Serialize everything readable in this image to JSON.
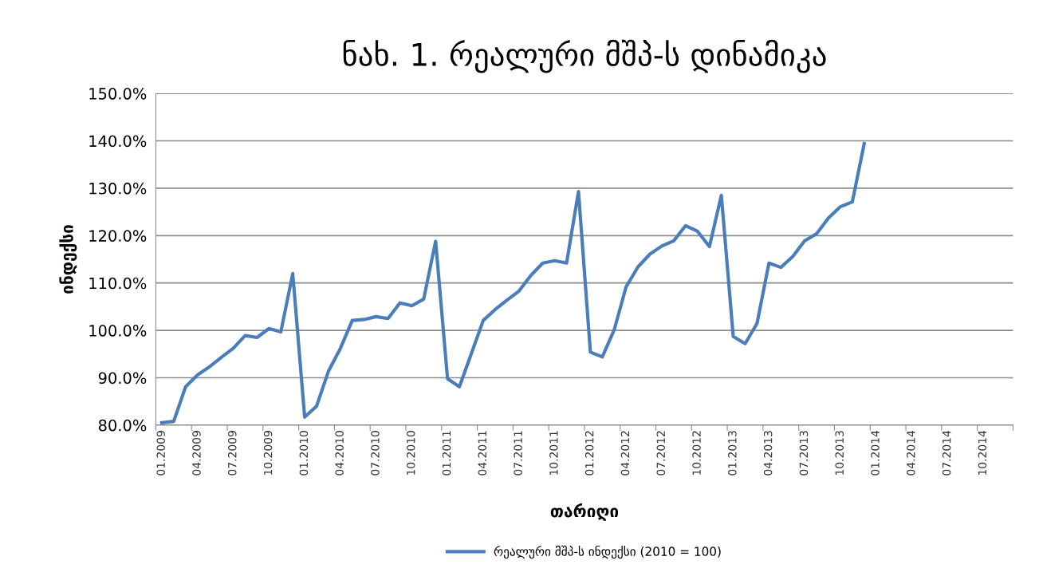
{
  "chart_data": {
    "type": "line",
    "title": "ნახ. 1. რეალური მშპ-ს დინამიკა",
    "xlabel": "თარიღი",
    "ylabel": "ინდექსი",
    "categories": [
      "01.2009",
      null,
      null,
      "04.2009",
      null,
      null,
      "07.2009",
      null,
      null,
      "10.2009",
      null,
      null,
      "01.2010",
      null,
      null,
      "04.2010",
      null,
      null,
      "07.2010",
      null,
      null,
      "10.2010",
      null,
      null,
      "01.2011",
      null,
      null,
      "04.2011",
      null,
      null,
      "07.2011",
      null,
      null,
      "10.2011",
      null,
      null,
      "01.2012",
      null,
      null,
      "04.2012",
      null,
      null,
      "07.2012",
      null,
      null,
      "10.2012",
      null,
      null,
      "01.2013",
      null,
      null,
      "04.2013",
      null,
      null,
      "07.2013",
      null,
      null,
      "10.2013",
      null,
      null,
      "01.2014",
      null,
      null,
      "04.2014",
      null,
      null,
      "07.2014",
      null,
      null,
      "10.2014",
      null,
      null
    ],
    "series": [
      {
        "name": "რეალური მშპ-ს ინდექსი (2010 = 100)",
        "color": "#4a7ebb",
        "values": [
          80.5,
          80.8,
          88.1,
          90.6,
          92.3,
          94.3,
          96.2,
          98.9,
          98.5,
          100.4,
          99.7,
          112.0,
          81.7,
          84.0,
          91.4,
          96.2,
          102.1,
          102.3,
          102.9,
          102.5,
          105.8,
          105.2,
          106.6,
          118.8,
          89.8,
          88.1,
          95.1,
          102.1,
          104.4,
          106.4,
          108.3,
          111.6,
          114.2,
          114.7,
          114.2,
          129.3,
          95.4,
          94.4,
          100.1,
          109.2,
          113.4,
          116.1,
          117.8,
          118.9,
          122.1,
          120.9,
          117.7,
          128.5,
          98.7,
          97.2,
          101.5,
          114.2,
          113.3,
          115.6,
          118.9,
          120.4,
          123.7,
          126.1,
          127.1,
          139.4,
          null,
          null,
          null,
          null,
          null,
          null,
          null,
          null,
          null,
          null,
          null,
          null
        ]
      }
    ],
    "ylim": [
      80,
      150
    ],
    "yticks": [
      {
        "value": 80,
        "label": "80.0%"
      },
      {
        "value": 90,
        "label": "90.0%"
      },
      {
        "value": 100,
        "label": "100.0%"
      },
      {
        "value": 110,
        "label": "110.0%"
      },
      {
        "value": 120,
        "label": "120.0%"
      },
      {
        "value": 130,
        "label": "130.0%"
      },
      {
        "value": 140,
        "label": "140.0%"
      },
      {
        "value": 150,
        "label": "150.0%"
      }
    ],
    "grid": "y",
    "legend": "bottom",
    "marker": "none",
    "line_style": "solid"
  }
}
